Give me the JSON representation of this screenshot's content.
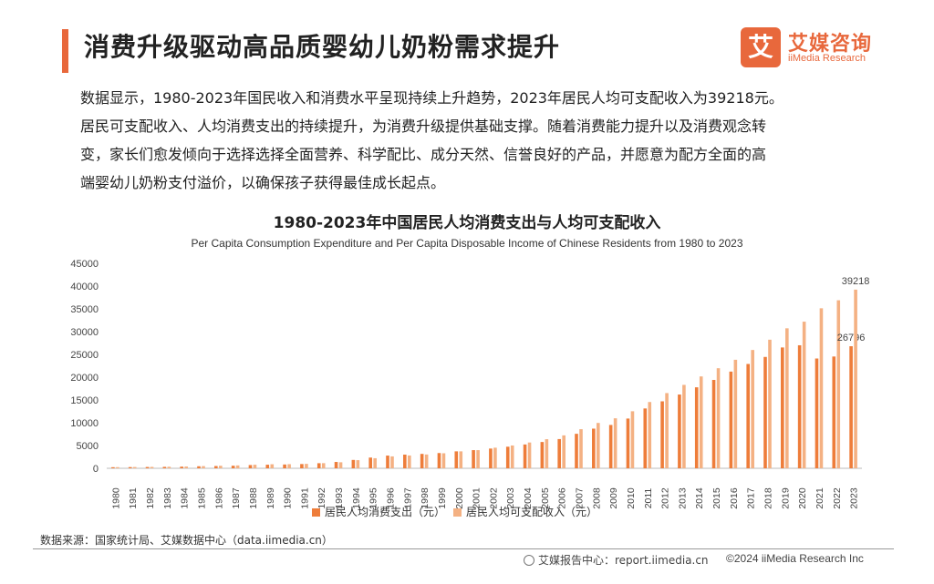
{
  "page": {
    "title": "消费升级驱动高品质婴幼儿奶粉需求提升",
    "logo_glyph": "艾",
    "logo_cn": "艾媒咨询",
    "logo_en": "iiMedia Research",
    "description": [
      "数据显示，1980-2023年国民收入和消费水平呈现持续上升趋势，2023年居民人均可支配收入为39218元。",
      "居民可支配收入、人均消费支出的持续提升，为消费升级提供基础支撑。随着消费能力提升以及消费观念转",
      "变，家长们愈发倾向于选择选择全面营养、科学配比、成分天然、信誉良好的产品，并愿意为配方全面的高",
      "端婴幼儿奶粉支付溢价，以确保孩子获得最佳成长起点。"
    ],
    "source": "数据来源：国家统计局、艾媒数据中心（data.iimedia.cn）",
    "footer_left": "艾媒报告中心：report.iimedia.cn",
    "footer_right": "©2024 iiMedia Research Inc"
  },
  "colors": {
    "accent": "#e8683c",
    "series1": "#ee7d3a",
    "series2": "#f4b183"
  },
  "chart_data": {
    "type": "bar",
    "title": "1980-2023年中国居民人均消费支出与人均可支配收入",
    "subtitle": "Per Capita Consumption Expenditure and Per Capita Disposable Income of Chinese Residents from 1980 to 2023",
    "categories": [
      "1980",
      "1981",
      "1982",
      "1983",
      "1984",
      "1985",
      "1986",
      "1987",
      "1988",
      "1989",
      "1990",
      "1991",
      "1992",
      "1993",
      "1994",
      "1995",
      "1996",
      "1997",
      "1998",
      "1999",
      "2000",
      "2001",
      "2002",
      "2003",
      "2004",
      "2005",
      "2006",
      "2007",
      "2008",
      "2009",
      "2010",
      "2011",
      "2012",
      "2013",
      "2014",
      "2015",
      "2016",
      "2017",
      "2018",
      "2019",
      "2020",
      "2021",
      "2022",
      "2023"
    ],
    "series": [
      {
        "name": "居民人均消费支出（元）",
        "values": [
          238,
          264,
          288,
          316,
          361,
          446,
          497,
          565,
          714,
          788,
          833,
          932,
          1116,
          1393,
          1833,
          2355,
          2789,
          3002,
          3159,
          3346,
          3721,
          3987,
          4332,
          4735,
          5228,
          5771,
          6416,
          7572,
          8707,
          9514,
          10919,
          13134,
          14699,
          16190,
          17778,
          19397,
          21228,
          22902,
          24445,
          26523,
          27007,
          24100,
          24538,
          26796
        ],
        "labels": {
          "43": "26796"
        }
      },
      {
        "name": "居民人均可支配收入（元）",
        "values": [
          247,
          280,
          305,
          339,
          389,
          477,
          555,
          632,
          782,
          886,
          904,
          977,
          1125,
          1320,
          1786,
          2210,
          2614,
          2812,
          3030,
          3301,
          3721,
          3987,
          4519,
          5007,
          5661,
          6385,
          7229,
          8584,
          9957,
          10977,
          12520,
          14551,
          16510,
          18311,
          20167,
          21966,
          23821,
          25974,
          28228,
          30733,
          32189,
          35128,
          36883,
          39218
        ],
        "labels": {
          "43": "39218"
        }
      }
    ],
    "ylim": [
      0,
      45000
    ],
    "yticks": [
      0,
      5000,
      10000,
      15000,
      20000,
      25000,
      30000,
      35000,
      40000,
      45000
    ],
    "grid": false,
    "legend_position": "bottom"
  }
}
